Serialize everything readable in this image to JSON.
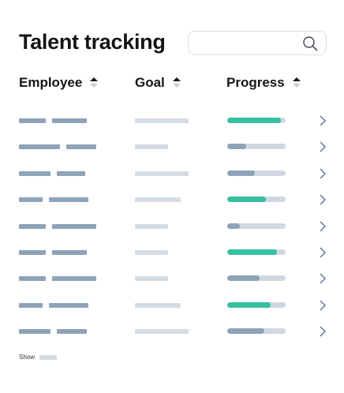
{
  "title": "Talent tracking",
  "search": {
    "value": "",
    "icon": "search-icon"
  },
  "columns": [
    {
      "label": "Employee",
      "sort": "ascending"
    },
    {
      "label": "Goal",
      "sort": "ascending"
    },
    {
      "label": "Progress",
      "sort": "ascending"
    }
  ],
  "colors": {
    "complete": "#36bfa0",
    "partial": "#8fa3b8",
    "track": "#cfd8e1"
  },
  "rows": [
    {
      "progress": 0.92,
      "status": "complete"
    },
    {
      "progress": 0.32,
      "status": "partial"
    },
    {
      "progress": 0.47,
      "status": "partial"
    },
    {
      "progress": 0.66,
      "status": "complete"
    },
    {
      "progress": 0.22,
      "status": "partial"
    },
    {
      "progress": 0.85,
      "status": "complete"
    },
    {
      "progress": 0.55,
      "status": "partial"
    },
    {
      "progress": 0.74,
      "status": "complete"
    },
    {
      "progress": 0.63,
      "status": "partial"
    }
  ],
  "footer": {
    "show_label": "Show"
  }
}
